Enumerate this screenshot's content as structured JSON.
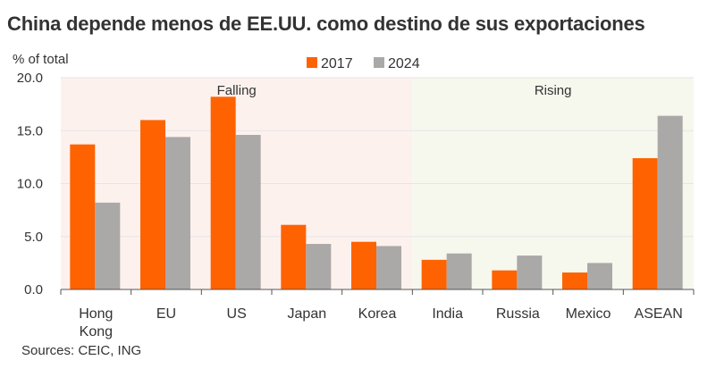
{
  "title": "China depende menos de EE.UU. como destino de sus exportaciones",
  "source": "Sources: CEIC, ING",
  "chart_data": {
    "type": "bar",
    "ylabel": "% of total",
    "ylim": [
      0,
      20
    ],
    "yticks": [
      0,
      5,
      10,
      15,
      20
    ],
    "ytick_labels": [
      "0.0",
      "5.0",
      "10.0",
      "15.0",
      "20.0"
    ],
    "categories": [
      [
        "Hong",
        "Kong"
      ],
      [
        "EU"
      ],
      [
        "US"
      ],
      [
        "Japan"
      ],
      [
        "Korea"
      ],
      [
        "India"
      ],
      [
        "Russia"
      ],
      [
        "Mexico"
      ],
      [
        "ASEAN"
      ]
    ],
    "series": [
      {
        "name": "2017",
        "color": "#FF6200",
        "values": [
          13.7,
          16.0,
          18.2,
          6.1,
          4.5,
          2.8,
          1.8,
          1.6,
          12.4
        ]
      },
      {
        "name": "2024",
        "color": "#AAA9A7",
        "values": [
          8.2,
          14.4,
          14.6,
          4.3,
          4.1,
          3.4,
          3.2,
          2.5,
          16.4
        ]
      }
    ],
    "regions": [
      {
        "label": "Falling",
        "from": 0,
        "to": 4,
        "color": "#FDF1EE"
      },
      {
        "label": "Rising",
        "from": 5,
        "to": 8,
        "color": "#F6F8EE"
      }
    ],
    "grid": true,
    "legend": "top-center"
  }
}
